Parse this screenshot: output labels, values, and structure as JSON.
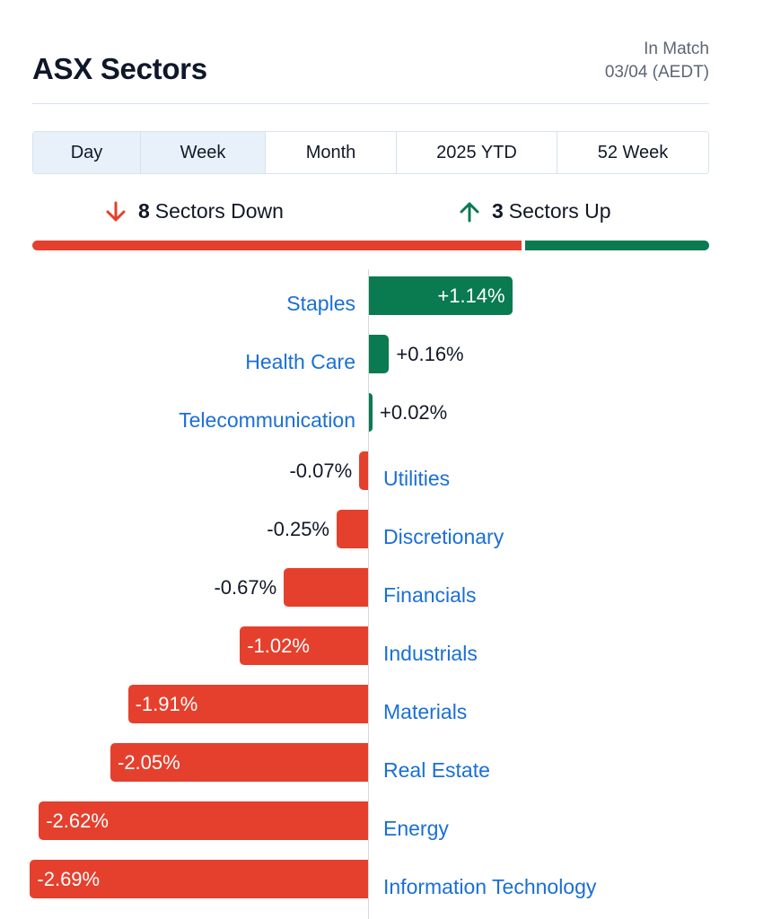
{
  "header": {
    "title": "ASX Sectors",
    "status_line1": "In Match",
    "status_line2": "03/04 (AEDT)"
  },
  "tabs": [
    {
      "label": "Day",
      "active": true
    },
    {
      "label": "Week",
      "active": true
    },
    {
      "label": "Month",
      "active": false
    },
    {
      "label": "2025 YTD",
      "active": false
    },
    {
      "label": "52 Week",
      "active": false
    }
  ],
  "summary": {
    "down_count": "8",
    "down_label": "Sectors Down",
    "up_count": "3",
    "up_label": "Sectors Up"
  },
  "colors": {
    "up": "#0a7a50",
    "down": "#e5402d",
    "link": "#1a6fd6"
  },
  "chart_data": {
    "type": "bar",
    "orientation": "horizontal",
    "categories": [
      "Staples",
      "Health Care",
      "Telecommunication",
      "Utilities",
      "Discretionary",
      "Financials",
      "Industrials",
      "Materials",
      "Real Estate",
      "Energy",
      "Information Technology"
    ],
    "values": [
      1.14,
      0.16,
      0.02,
      -0.07,
      -0.25,
      -0.67,
      -1.02,
      -1.91,
      -2.05,
      -2.62,
      -2.69
    ],
    "value_labels": [
      "+1.14%",
      "+0.16%",
      "+0.02%",
      "-0.07%",
      "-0.25%",
      "-0.67%",
      "-1.02%",
      "-1.91%",
      "-2.05%",
      "-2.62%",
      "-2.69%"
    ],
    "unit": "%"
  }
}
